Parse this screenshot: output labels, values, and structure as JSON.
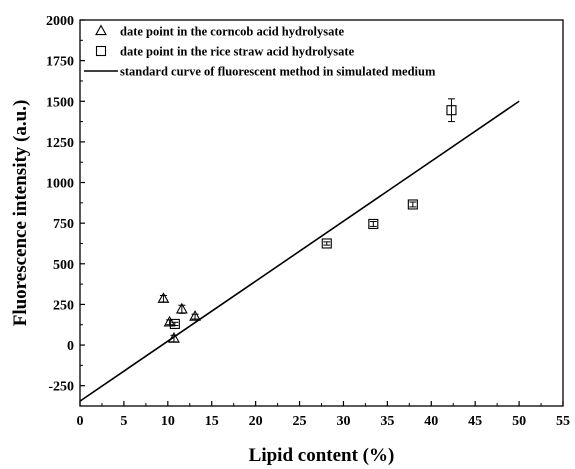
{
  "chart_data": {
    "type": "scatter",
    "xlabel": "Lipid content (%)",
    "ylabel": "Fluorescence intensity (a.u.)",
    "xlim": [
      0,
      55
    ],
    "ylim": [
      -375,
      2000
    ],
    "xticks": [
      0,
      5,
      10,
      15,
      20,
      25,
      30,
      35,
      40,
      45,
      50,
      55
    ],
    "xtick_labels": [
      "0",
      "5",
      "10",
      "15",
      "20",
      "25",
      "30",
      "35",
      "40",
      "45",
      "50",
      "55"
    ],
    "yticks": [
      -250,
      0,
      250,
      500,
      750,
      1000,
      1250,
      1500,
      1750,
      2000
    ],
    "ytick_labels": [
      "-250",
      "0",
      "250",
      "500",
      "750",
      "1000",
      "1250",
      "1500",
      "1750",
      "2000"
    ],
    "grid": false,
    "legend_position": "top-left",
    "legend": [
      {
        "label": "date point in the corncob acid hydrolysate",
        "marker": "triangle"
      },
      {
        "label": "date point in the rice straw acid hydrolysate",
        "marker": "square"
      },
      {
        "label": "standard curve of fluorescent method in simulated medium",
        "marker": "line"
      }
    ],
    "series": [
      {
        "marker": "triangle",
        "points": [
          {
            "x": 9.5,
            "y": 285,
            "err": 20
          },
          {
            "x": 10.2,
            "y": 140,
            "err": 15
          },
          {
            "x": 10.7,
            "y": 40,
            "err": 20
          },
          {
            "x": 11.6,
            "y": 220,
            "err": 25
          },
          {
            "x": 13.1,
            "y": 175,
            "err": 15
          }
        ]
      },
      {
        "marker": "square",
        "points": [
          {
            "x": 10.8,
            "y": 130,
            "err": 10
          },
          {
            "x": 28.1,
            "y": 625,
            "err": 10
          },
          {
            "x": 33.4,
            "y": 745,
            "err": 15
          },
          {
            "x": 37.9,
            "y": 865,
            "err": 15
          },
          {
            "x": 42.3,
            "y": 1445,
            "err": 70
          }
        ]
      },
      {
        "marker": "line",
        "points": [
          {
            "x": 0,
            "y": -345
          },
          {
            "x": 50,
            "y": 1500
          }
        ]
      }
    ],
    "colors": {
      "axis": "#000000",
      "marks": "#000000",
      "background": "#ffffff"
    }
  }
}
